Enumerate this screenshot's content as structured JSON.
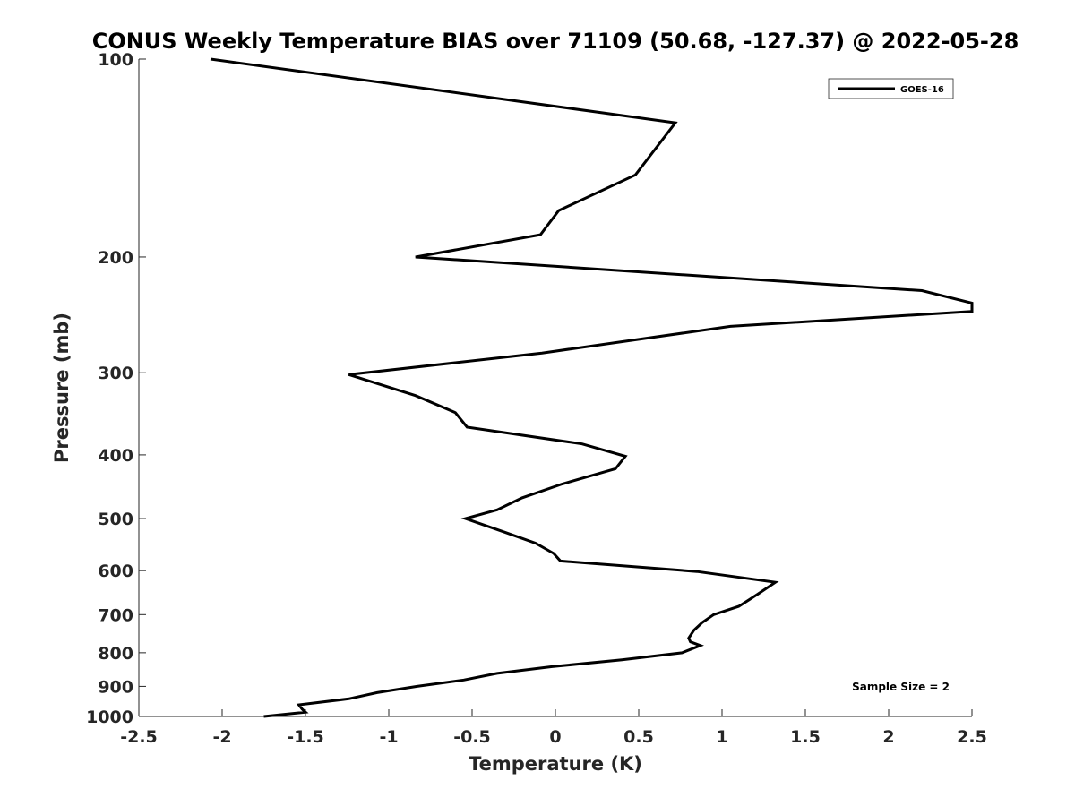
{
  "chart_data": {
    "type": "line",
    "title": "CONUS Weekly Temperature BIAS over 71109 (50.68, -127.37) @ 2022-05-28",
    "xlabel": "Temperature (K)",
    "ylabel": "Pressure (mb)",
    "xlim": [
      -2.5,
      2.5
    ],
    "ylim": [
      1000,
      100
    ],
    "y_scale": "log",
    "y_reversed": true,
    "grid": false,
    "legend_position": "top-right",
    "x_ticks": [
      "-2.5",
      "-2",
      "-1.5",
      "-1",
      "-0.5",
      "0",
      "0.5",
      "1",
      "1.5",
      "2",
      "2.5"
    ],
    "y_ticks": [
      "100",
      "200",
      "300",
      "400",
      "500",
      "600",
      "700",
      "800",
      "900",
      "1000"
    ],
    "annotation": "Sample Size = 2",
    "series": [
      {
        "name": "GOES-16",
        "color": "#000000",
        "points": [
          {
            "t": -2.07,
            "p": 100
          },
          {
            "t": 0.72,
            "p": 125
          },
          {
            "t": 0.48,
            "p": 150
          },
          {
            "t": 0.02,
            "p": 170
          },
          {
            "t": -0.09,
            "p": 185
          },
          {
            "t": -0.84,
            "p": 200
          },
          {
            "t": 2.2,
            "p": 225
          },
          {
            "t": 2.5,
            "p": 235
          },
          {
            "t": 2.5,
            "p": 242
          },
          {
            "t": 1.05,
            "p": 255
          },
          {
            "t": -0.08,
            "p": 280
          },
          {
            "t": -1.24,
            "p": 302
          },
          {
            "t": -0.84,
            "p": 325
          },
          {
            "t": -0.6,
            "p": 345
          },
          {
            "t": -0.53,
            "p": 363
          },
          {
            "t": 0.16,
            "p": 385
          },
          {
            "t": 0.42,
            "p": 402
          },
          {
            "t": 0.36,
            "p": 420
          },
          {
            "t": 0.04,
            "p": 443
          },
          {
            "t": -0.2,
            "p": 465
          },
          {
            "t": -0.35,
            "p": 485
          },
          {
            "t": -0.54,
            "p": 500
          },
          {
            "t": -0.3,
            "p": 525
          },
          {
            "t": -0.12,
            "p": 545
          },
          {
            "t": -0.01,
            "p": 565
          },
          {
            "t": 0.03,
            "p": 580
          },
          {
            "t": 0.85,
            "p": 602
          },
          {
            "t": 1.32,
            "p": 625
          },
          {
            "t": 1.22,
            "p": 650
          },
          {
            "t": 1.16,
            "p": 665
          },
          {
            "t": 1.1,
            "p": 680
          },
          {
            "t": 0.95,
            "p": 700
          },
          {
            "t": 0.88,
            "p": 720
          },
          {
            "t": 0.83,
            "p": 740
          },
          {
            "t": 0.8,
            "p": 760
          },
          {
            "t": 0.81,
            "p": 770
          },
          {
            "t": 0.87,
            "p": 780
          },
          {
            "t": 0.76,
            "p": 800
          },
          {
            "t": 0.4,
            "p": 820
          },
          {
            "t": -0.02,
            "p": 840
          },
          {
            "t": -0.35,
            "p": 860
          },
          {
            "t": -0.55,
            "p": 880
          },
          {
            "t": -0.83,
            "p": 900
          },
          {
            "t": -1.07,
            "p": 920
          },
          {
            "t": -1.24,
            "p": 940
          },
          {
            "t": -1.54,
            "p": 960
          },
          {
            "t": -1.52,
            "p": 975
          },
          {
            "t": -1.5,
            "p": 985
          },
          {
            "t": -1.75,
            "p": 1000
          }
        ]
      }
    ]
  }
}
